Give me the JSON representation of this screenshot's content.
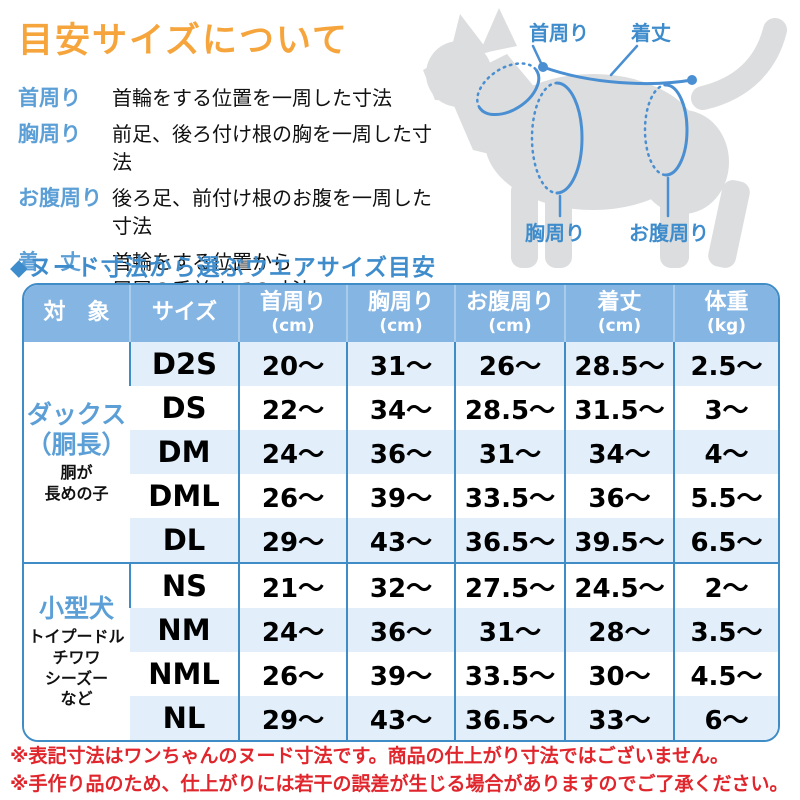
{
  "title": "目安サイズについて",
  "definitions": [
    {
      "label": "首周り",
      "text": "首輪をする位置を一周した寸法"
    },
    {
      "label": "胸周り",
      "text": "前足、後ろ付け根の胸を一周した寸法"
    },
    {
      "label": "お腹周り",
      "text": "後ろ足、前付け根のお腹を一周した寸法"
    },
    {
      "label": "着　丈",
      "text": "首輪をする位置から\n尻尾の手前までの寸法"
    }
  ],
  "diagram": {
    "labels": {
      "neck": "首周り",
      "back_length": "着丈",
      "chest": "胸周り",
      "belly": "お腹周り"
    }
  },
  "section_heading": "◆ヌード寸法から選ぶウエアサイズ目安",
  "table": {
    "headers": [
      {
        "main": "対　象",
        "sub": ""
      },
      {
        "main": "サイズ",
        "sub": ""
      },
      {
        "main": "首周り",
        "sub": "(cm)"
      },
      {
        "main": "胸周り",
        "sub": "(cm)"
      },
      {
        "main": "お腹周り",
        "sub": "(cm)"
      },
      {
        "main": "着丈",
        "sub": "(cm)"
      },
      {
        "main": "体重",
        "sub": "(kg)"
      }
    ],
    "groups": [
      {
        "target_main": [
          "ダックス",
          "（胴長）"
        ],
        "target_sub": [
          "胴が",
          "長めの子"
        ],
        "rows": [
          {
            "size": "D2S",
            "values": [
              "20〜",
              "31〜",
              "26〜",
              "28.5〜",
              "2.5〜"
            ]
          },
          {
            "size": "DS",
            "values": [
              "22〜",
              "34〜",
              "28.5〜",
              "31.5〜",
              "3〜"
            ]
          },
          {
            "size": "DM",
            "values": [
              "24〜",
              "36〜",
              "31〜",
              "34〜",
              "4〜"
            ]
          },
          {
            "size": "DML",
            "values": [
              "26〜",
              "39〜",
              "33.5〜",
              "36〜",
              "5.5〜"
            ]
          },
          {
            "size": "DL",
            "values": [
              "29〜",
              "43〜",
              "36.5〜",
              "39.5〜",
              "6.5〜"
            ]
          }
        ]
      },
      {
        "target_main": [
          "小型犬"
        ],
        "target_sub": [
          "トイプードル",
          "チワワ",
          "シーズー",
          "など"
        ],
        "rows": [
          {
            "size": "NS",
            "values": [
              "21〜",
              "32〜",
              "27.5〜",
              "24.5〜",
              "2〜"
            ]
          },
          {
            "size": "NM",
            "values": [
              "24〜",
              "36〜",
              "31〜",
              "28〜",
              "3.5〜"
            ]
          },
          {
            "size": "NML",
            "values": [
              "26〜",
              "39〜",
              "33.5〜",
              "30〜",
              "4.5〜"
            ]
          },
          {
            "size": "NL",
            "values": [
              "29〜",
              "43〜",
              "36.5〜",
              "33〜",
              "6〜"
            ]
          }
        ]
      }
    ]
  },
  "notes": [
    "※表記寸法はワンちゃんのヌード寸法です。商品の仕上がり寸法ではございません。",
    "※手作り品のため、仕上がりには若干の誤差が生じる場合がありますのでご了承ください。"
  ],
  "colors": {
    "title_orange": "#F5A53C",
    "heading_blue": "#3E8CCB",
    "label_blue": "#5C9FD6",
    "table_border_blue": "#3F8CC6",
    "header_bg_blue": "#85B5E3",
    "row_alt_blue": "#E2EFFA",
    "note_red": "#E0262C",
    "dog_gray": "#DCDDDE",
    "measure_line_blue": "#4A8FD2"
  }
}
